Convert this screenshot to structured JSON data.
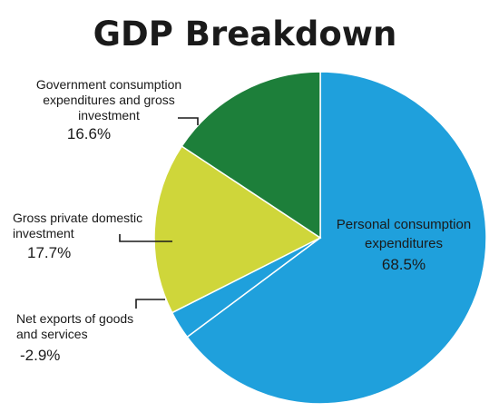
{
  "chart_data": {
    "type": "pie",
    "title": "GDP Breakdown",
    "slices": [
      {
        "name_lines": [
          "Personal consumption",
          "expenditures"
        ],
        "value": 68.5,
        "label": "68.5%",
        "color": "#1fa0dc"
      },
      {
        "name_lines": [
          "Net exports of goods",
          "and services"
        ],
        "value": -2.9,
        "label": "-2.9%",
        "color": "#1fa0dc"
      },
      {
        "name_lines": [
          "Gross private domestic",
          "investment"
        ],
        "value": 17.7,
        "label": "17.7%",
        "color": "#cfd63a"
      },
      {
        "name_lines": [
          "Government consumption",
          "expenditures and gross",
          "investment"
        ],
        "value": 16.6,
        "label": "16.6%",
        "color": "#1d7f3a"
      }
    ],
    "legend": "none",
    "grid": false
  }
}
